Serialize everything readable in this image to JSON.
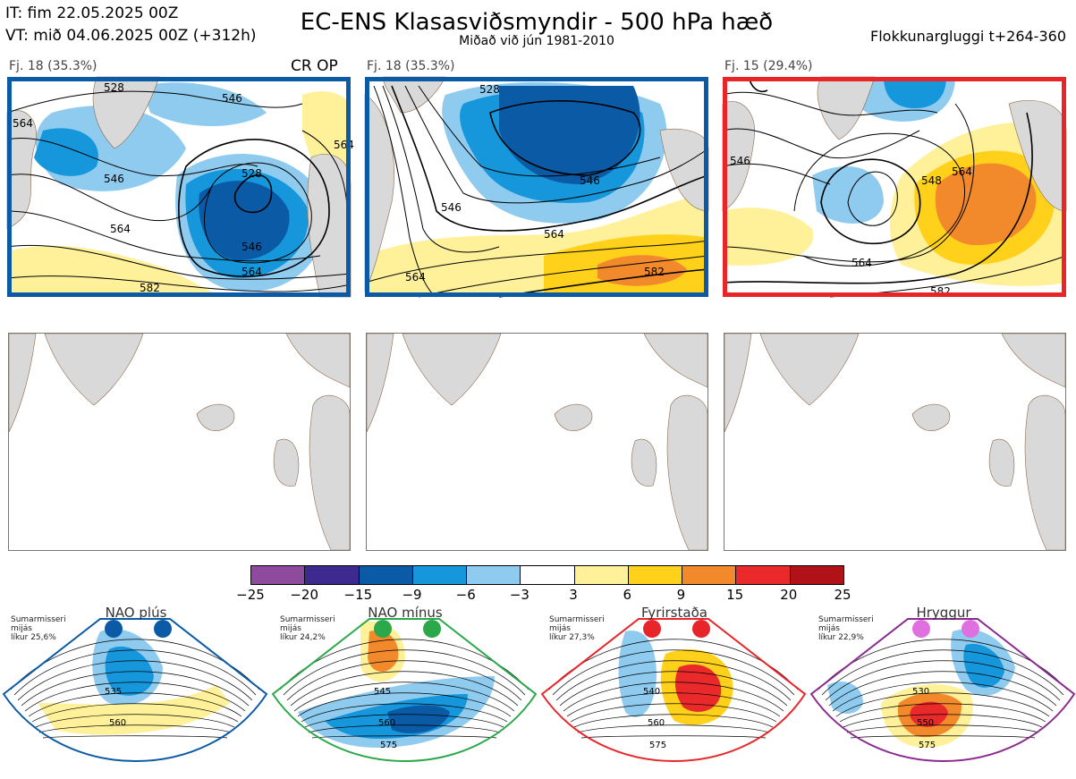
{
  "header": {
    "it": "IT: fim 22.05.2025 00Z",
    "vt": "VT: mið 04.06.2025 00Z  (+312h)",
    "title": "EC-ENS Klasasviðsmyndir - 500 hPa hæð",
    "subtitle": "Miðað við jún 1981-2010",
    "window": "Flokkunargluggi t+264-360"
  },
  "panels": [
    {
      "title": "Fj. 18 (35.3%)",
      "tag": "CR OP",
      "frame_color": "#0b5aa6",
      "labels": [
        "528",
        "546",
        "564",
        "564",
        "546",
        "528",
        "546",
        "564",
        "582",
        "564"
      ]
    },
    {
      "title": "Fj. 18 (35.3%)",
      "tag": "",
      "frame_color": "#0b5aa6",
      "labels": [
        "528",
        "546",
        "564",
        "582",
        "546",
        "564"
      ]
    },
    {
      "title": "Fj. 15 (29.4%)",
      "tag": "",
      "frame_color": "#e8262a",
      "labels": [
        "546",
        "564",
        "548",
        "564",
        "582"
      ]
    }
  ],
  "colorbar": {
    "colors": [
      "#8e4a9c",
      "#3c2a8e",
      "#0b5aa6",
      "#1697dc",
      "#8ecbef",
      "#ffffff",
      "#fff199",
      "#ffd11a",
      "#f28a2c",
      "#ea2a2a",
      "#b01218"
    ],
    "ticks": [
      "−25",
      "−20",
      "−15",
      "−9",
      "−6",
      "−3",
      "3",
      "6",
      "9",
      "15",
      "20",
      "25"
    ]
  },
  "regimes": [
    {
      "name": "NAO plús",
      "info": [
        "Sumarmisseri",
        "mijás",
        "líkur 25,6%"
      ],
      "border": "#0b5aa6",
      "dot": "#0b5aa6",
      "labels": [
        "535",
        "560"
      ]
    },
    {
      "name": "NAO mínus",
      "info": [
        "Sumarmisseri",
        "mijás",
        "líkur 24,2%"
      ],
      "border": "#2aa84a",
      "dot": "#2aa84a",
      "labels": [
        "545",
        "560",
        "575"
      ]
    },
    {
      "name": "Fyrirstaða",
      "info": [
        "Sumarmisseri",
        "mijás",
        "líkur 27,3%"
      ],
      "border": "#e8262a",
      "dot": "#e8262a",
      "labels": [
        "540",
        "560",
        "575"
      ]
    },
    {
      "name": "Hryggur",
      "info": [
        "Sumarmisseri",
        "mijás",
        "líkur 22,9%"
      ],
      "border": "#8a2a8e",
      "dot": "#e070e0",
      "labels": [
        "530",
        "550",
        "575"
      ]
    }
  ]
}
